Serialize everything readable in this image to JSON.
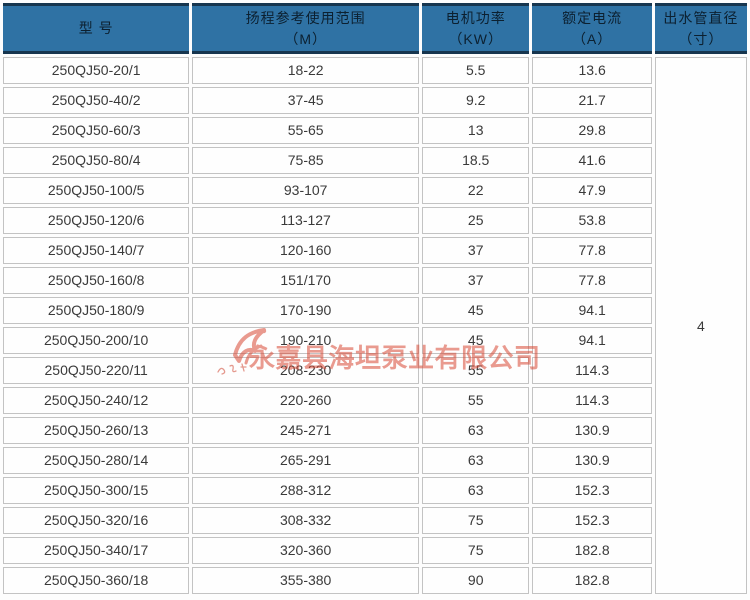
{
  "table": {
    "columns": [
      {
        "id": "model",
        "line1": "型 号",
        "line2": ""
      },
      {
        "id": "head_range",
        "line1": "扬程参考使用范围",
        "line2": "（M）"
      },
      {
        "id": "motor_power",
        "line1": "电机功率",
        "line2": "（KW）"
      },
      {
        "id": "rated_current",
        "line1": "额定电流",
        "line2": "（A）"
      },
      {
        "id": "outlet_diameter",
        "line1": "出水管直径",
        "line2": "（寸）"
      }
    ],
    "rows": [
      [
        "250QJ50-20/1",
        "18-22",
        "5.5",
        "13.6"
      ],
      [
        "250QJ50-40/2",
        "37-45",
        "9.2",
        "21.7"
      ],
      [
        "250QJ50-60/3",
        "55-65",
        "13",
        "29.8"
      ],
      [
        "250QJ50-80/4",
        "75-85",
        "18.5",
        "41.6"
      ],
      [
        "250QJ50-100/5",
        "93-107",
        "22",
        "47.9"
      ],
      [
        "250QJ50-120/6",
        "113-127",
        "25",
        "53.8"
      ],
      [
        "250QJ50-140/7",
        "120-160",
        "37",
        "77.8"
      ],
      [
        "250QJ50-160/8",
        "151/170",
        "37",
        "77.8"
      ],
      [
        "250QJ50-180/9",
        "170-190",
        "45",
        "94.1"
      ],
      [
        "250QJ50-200/10",
        "190-210",
        "45",
        "94.1"
      ],
      [
        "250QJ50-220/11",
        "208-230",
        "55",
        "114.3"
      ],
      [
        "250QJ50-240/12",
        "220-260",
        "55",
        "114.3"
      ],
      [
        "250QJ50-260/13",
        "245-271",
        "63",
        "130.9"
      ],
      [
        "250QJ50-280/14",
        "265-291",
        "63",
        "130.9"
      ],
      [
        "250QJ50-300/15",
        "288-312",
        "63",
        "152.3"
      ],
      [
        "250QJ50-320/16",
        "308-332",
        "75",
        "152.3"
      ],
      [
        "250QJ50-340/17",
        "320-360",
        "75",
        "182.8"
      ],
      [
        "250QJ50-360/18",
        "355-380",
        "90",
        "182.8"
      ]
    ],
    "outlet_diameter_merged_value": "4"
  },
  "watermark": {
    "company_name": "永嘉县海坦泵业有限公司"
  },
  "colors": {
    "header_bg": "#2f72a4",
    "header_border": "#17364f",
    "header_text": "#0c2030",
    "cell_border": "#c3c3c3",
    "cell_text": "#3a3a3a",
    "watermark_red": "#d84a36"
  }
}
